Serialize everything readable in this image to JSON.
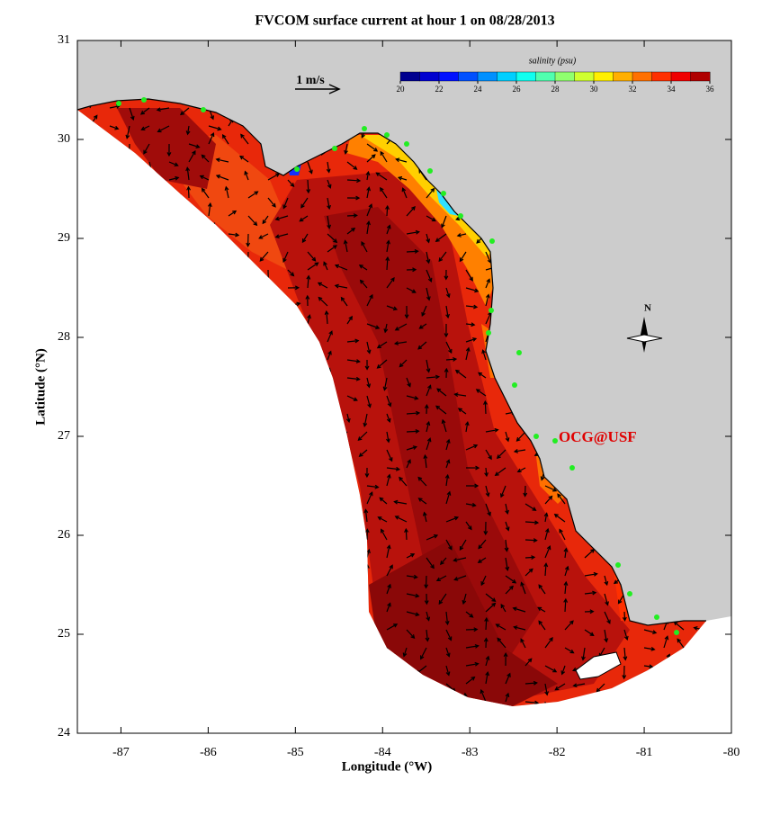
{
  "title": "FVCOM surface current at hour 1 on 08/28/2013",
  "map": {
    "xlabel": "Longitude (°W)",
    "ylabel": "Latitude (°N)",
    "xlim": [
      -87.5,
      -80
    ],
    "ylim": [
      24,
      31
    ],
    "xticks": [
      -87,
      -86,
      -85,
      -84,
      -83,
      -82,
      -81,
      -80
    ],
    "yticks": [
      24,
      25,
      26,
      27,
      28,
      29,
      30,
      31
    ],
    "scale_label": "1 m/s",
    "north_label": "N",
    "credit": "OCG@USF"
  },
  "colorbar": {
    "label": "salinity (psu)",
    "lim": [
      20,
      36
    ],
    "ticks": [
      20,
      22,
      24,
      26,
      28,
      30,
      32,
      34,
      36
    ],
    "colors": [
      "#00008f",
      "#0000cf",
      "#0010ff",
      "#0050ff",
      "#0090ff",
      "#00cfff",
      "#10ffef",
      "#50ffaf",
      "#90ff6f",
      "#cfff30",
      "#ffef00",
      "#ffaf00",
      "#ff7000",
      "#ff3000",
      "#ef0000",
      "#af0000"
    ]
  }
}
